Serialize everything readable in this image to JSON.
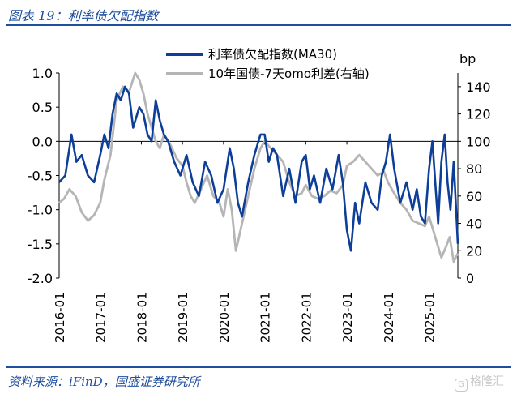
{
  "header": {
    "figure_title": "图表 19：利率债欠配指数"
  },
  "footer": {
    "source": "资料来源：iFinD，国盛证券研究所",
    "watermark": "格隆汇"
  },
  "chart_data": {
    "type": "line",
    "title": "",
    "xlabel": "",
    "ylabel_left": "",
    "ylabel_right": "bp",
    "x_tick_labels": [
      "2016-01",
      "2017-01",
      "2018-01",
      "2019-01",
      "2020-01",
      "2021-01",
      "2022-01",
      "2023-01",
      "2024-01",
      "2025-01"
    ],
    "x_range": [
      2016.0,
      2025.7
    ],
    "y_left": {
      "range": [
        -2.0,
        1.0
      ],
      "ticks": [
        "-2.0",
        "-1.5",
        "-1.0",
        "-0.5",
        "0.0",
        "0.5",
        "1.0"
      ]
    },
    "y_right": {
      "range": [
        0,
        150
      ],
      "ticks": [
        "0",
        "20",
        "40",
        "60",
        "80",
        "100",
        "120",
        "140"
      ]
    },
    "legend_position": "top",
    "grid": false,
    "series": [
      {
        "name": "利率债欠配指数(MA30)",
        "axis": "left",
        "color": "#0d3f99",
        "x": [
          2016.0,
          2016.15,
          2016.3,
          2016.42,
          2016.55,
          2016.7,
          2016.85,
          2017.0,
          2017.1,
          2017.2,
          2017.3,
          2017.4,
          2017.5,
          2017.6,
          2017.7,
          2017.8,
          2017.95,
          2018.05,
          2018.15,
          2018.25,
          2018.35,
          2018.45,
          2018.55,
          2018.65,
          2018.8,
          2018.95,
          2019.1,
          2019.25,
          2019.4,
          2019.55,
          2019.7,
          2019.85,
          2020.0,
          2020.15,
          2020.25,
          2020.35,
          2020.45,
          2020.6,
          2020.75,
          2020.9,
          2021.0,
          2021.1,
          2021.2,
          2021.3,
          2021.45,
          2021.6,
          2021.75,
          2021.9,
          2022.0,
          2022.1,
          2022.2,
          2022.35,
          2022.5,
          2022.65,
          2022.8,
          2022.9,
          2023.0,
          2023.1,
          2023.2,
          2023.3,
          2023.45,
          2023.6,
          2023.75,
          2023.85,
          2023.95,
          2024.05,
          2024.15,
          2024.3,
          2024.45,
          2024.6,
          2024.7,
          2024.8,
          2024.9,
          2025.0,
          2025.08,
          2025.15,
          2025.22,
          2025.3,
          2025.38,
          2025.45,
          2025.52,
          2025.6,
          2025.7
        ],
        "y": [
          -0.6,
          -0.5,
          0.1,
          -0.3,
          -0.2,
          -0.5,
          -0.6,
          -0.2,
          0.1,
          -0.1,
          0.4,
          0.7,
          0.6,
          0.8,
          0.7,
          0.2,
          0.5,
          0.4,
          0.1,
          0.0,
          0.6,
          0.3,
          0.1,
          0.0,
          -0.3,
          -0.5,
          -0.2,
          -0.6,
          -0.8,
          -0.3,
          -0.5,
          -0.9,
          -0.7,
          -0.1,
          -0.4,
          -0.9,
          -1.1,
          -0.6,
          -0.2,
          0.1,
          0.1,
          -0.3,
          -0.1,
          -0.2,
          -0.8,
          -0.4,
          -0.9,
          -0.3,
          -0.2,
          -0.7,
          -0.5,
          -0.9,
          -0.4,
          -0.7,
          -0.2,
          -0.6,
          -1.3,
          -1.6,
          -0.9,
          -1.2,
          -0.6,
          -0.9,
          -1.0,
          -0.5,
          -0.3,
          0.1,
          -0.4,
          -0.9,
          -0.6,
          -1.0,
          -0.7,
          -1.1,
          -1.2,
          -0.4,
          0.0,
          -0.6,
          -1.2,
          -0.3,
          0.1,
          -0.6,
          -1.0,
          -0.3,
          -1.5
        ]
      },
      {
        "name": "10年国债-7天omo利差(右轴)",
        "axis": "right",
        "color": "#b5b5b5",
        "x": [
          2016.0,
          2016.12,
          2016.25,
          2016.4,
          2016.55,
          2016.7,
          2016.85,
          2017.0,
          2017.1,
          2017.25,
          2017.4,
          2017.55,
          2017.7,
          2017.85,
          2017.95,
          2018.05,
          2018.15,
          2018.25,
          2018.35,
          2018.45,
          2018.55,
          2018.7,
          2018.85,
          2019.0,
          2019.1,
          2019.2,
          2019.3,
          2019.45,
          2019.6,
          2019.75,
          2019.9,
          2020.0,
          2020.1,
          2020.2,
          2020.3,
          2020.45,
          2020.6,
          2020.75,
          2020.9,
          2021.0,
          2021.15,
          2021.3,
          2021.45,
          2021.6,
          2021.75,
          2021.9,
          2022.0,
          2022.15,
          2022.3,
          2022.45,
          2022.6,
          2022.75,
          2022.9,
          2023.0,
          2023.15,
          2023.3,
          2023.45,
          2023.6,
          2023.75,
          2023.9,
          2024.0,
          2024.15,
          2024.3,
          2024.45,
          2024.6,
          2024.75,
          2024.9,
          2025.0,
          2025.1,
          2025.2,
          2025.3,
          2025.4,
          2025.5,
          2025.6,
          2025.7
        ],
        "y": [
          55,
          58,
          65,
          60,
          48,
          42,
          46,
          55,
          72,
          90,
          130,
          140,
          136,
          150,
          145,
          135,
          120,
          110,
          100,
          95,
          105,
          98,
          88,
          82,
          70,
          60,
          55,
          65,
          75,
          60,
          55,
          45,
          65,
          50,
          20,
          40,
          60,
          80,
          95,
          100,
          95,
          90,
          85,
          70,
          60,
          62,
          68,
          60,
          58,
          60,
          64,
          62,
          68,
          82,
          85,
          90,
          85,
          80,
          75,
          78,
          70,
          62,
          55,
          50,
          42,
          40,
          38,
          45,
          35,
          25,
          15,
          22,
          30,
          12,
          18
        ]
      }
    ]
  }
}
